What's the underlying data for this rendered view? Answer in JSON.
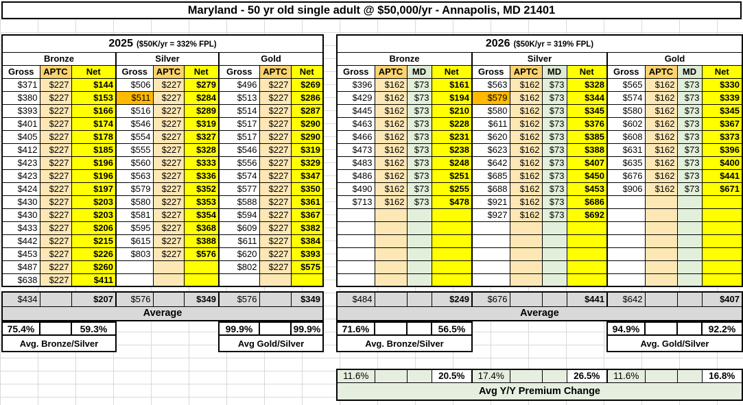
{
  "title": "Maryland - 50 yr old single adult @ $50,000/yr - Annapolis, MD 21401",
  "colors": {
    "net_yellow": "#ffff00",
    "aptc_header_tan": "#fbd36e",
    "aptc_cell_tan": "#fce7b5",
    "md_green": "#e2efda",
    "highlight_orange": "#ffb900",
    "summary_gray": "#d9d9d9",
    "yy_green": "#e6eee0"
  },
  "tables": [
    {
      "key": "y2025",
      "year": "2025",
      "note": "($50K/yr = 332% FPL)",
      "columns": [
        "Gross",
        "APTC",
        "Net"
      ],
      "groups": [
        {
          "name": "Bronze",
          "rows": [
            [
              "$371",
              "$227",
              "$144"
            ],
            [
              "$380",
              "$227",
              "$153"
            ],
            [
              "$393",
              "$227",
              "$166"
            ],
            [
              "$401",
              "$227",
              "$174"
            ],
            [
              "$405",
              "$227",
              "$178"
            ],
            [
              "$412",
              "$227",
              "$185"
            ],
            [
              "$423",
              "$227",
              "$196"
            ],
            [
              "$423",
              "$227",
              "$196"
            ],
            [
              "$424",
              "$227",
              "$197"
            ],
            [
              "$430",
              "$227",
              "$203"
            ],
            [
              "$430",
              "$227",
              "$203"
            ],
            [
              "$433",
              "$227",
              "$206"
            ],
            [
              "$442",
              "$227",
              "$215"
            ],
            [
              "$453",
              "$227",
              "$226"
            ],
            [
              "$487",
              "$227",
              "$260"
            ],
            [
              "$638",
              "$227",
              "$411"
            ]
          ]
        },
        {
          "name": "Silver",
          "rows": [
            [
              "$506",
              "$227",
              "$279"
            ],
            [
              "$511",
              "$227",
              "$284"
            ],
            [
              "$516",
              "$227",
              "$289"
            ],
            [
              "$546",
              "$227",
              "$319"
            ],
            [
              "$554",
              "$227",
              "$327"
            ],
            [
              "$555",
              "$227",
              "$328"
            ],
            [
              "$560",
              "$227",
              "$333"
            ],
            [
              "$563",
              "$227",
              "$336"
            ],
            [
              "$579",
              "$227",
              "$352"
            ],
            [
              "$580",
              "$227",
              "$353"
            ],
            [
              "$581",
              "$227",
              "$354"
            ],
            [
              "$595",
              "$227",
              "$368"
            ],
            [
              "$615",
              "$227",
              "$388"
            ],
            [
              "$803",
              "$227",
              "$576"
            ],
            [
              "",
              "",
              ""
            ],
            [
              "",
              "",
              ""
            ]
          ]
        },
        {
          "name": "Gold",
          "rows": [
            [
              "$496",
              "$227",
              "$269"
            ],
            [
              "$513",
              "$227",
              "$286"
            ],
            [
              "$514",
              "$227",
              "$287"
            ],
            [
              "$517",
              "$227",
              "$290"
            ],
            [
              "$517",
              "$227",
              "$290"
            ],
            [
              "$546",
              "$227",
              "$319"
            ],
            [
              "$556",
              "$227",
              "$329"
            ],
            [
              "$574",
              "$227",
              "$347"
            ],
            [
              "$577",
              "$227",
              "$350"
            ],
            [
              "$588",
              "$227",
              "$361"
            ],
            [
              "$594",
              "$227",
              "$367"
            ],
            [
              "$609",
              "$227",
              "$382"
            ],
            [
              "$611",
              "$227",
              "$384"
            ],
            [
              "$620",
              "$227",
              "$393"
            ],
            [
              "$802",
              "$227",
              "$575"
            ],
            [
              "",
              "",
              ""
            ]
          ]
        }
      ],
      "highlights": [
        [
          1,
          1,
          0
        ]
      ],
      "summary": {
        "avg_cells": [
          [
            "$434",
            "",
            "$207"
          ],
          [
            "$576",
            "",
            "$349"
          ],
          [
            "$576",
            "",
            "$349"
          ]
        ],
        "avg_label": "Average",
        "pct_cells": [
          [
            "75.4%",
            "",
            "59.3%"
          ],
          null,
          [
            "99.9%",
            "",
            "99.9%"
          ]
        ],
        "pct_labels": [
          "Avg. Bronze/Silver",
          null,
          "Avg Gold/Silver"
        ]
      }
    },
    {
      "key": "y2026",
      "year": "2026",
      "note": "($50K/yr = 319% FPL)",
      "columns": [
        "Gross",
        "APTC",
        "MD",
        "Net"
      ],
      "groups": [
        {
          "name": "Bronze",
          "rows": [
            [
              "$396",
              "$162",
              "$73",
              "$161"
            ],
            [
              "$429",
              "$162",
              "$73",
              "$194"
            ],
            [
              "$445",
              "$162",
              "$73",
              "$210"
            ],
            [
              "$463",
              "$162",
              "$73",
              "$228"
            ],
            [
              "$466",
              "$162",
              "$73",
              "$231"
            ],
            [
              "$473",
              "$162",
              "$73",
              "$238"
            ],
            [
              "$483",
              "$162",
              "$73",
              "$248"
            ],
            [
              "$486",
              "$162",
              "$73",
              "$251"
            ],
            [
              "$490",
              "$162",
              "$73",
              "$255"
            ],
            [
              "$713",
              "$162",
              "$73",
              "$478"
            ],
            [
              "",
              "",
              "",
              ""
            ],
            [
              "",
              "",
              "",
              ""
            ],
            [
              "",
              "",
              "",
              ""
            ],
            [
              "",
              "",
              "",
              ""
            ],
            [
              "",
              "",
              "",
              ""
            ],
            [
              "",
              "",
              "",
              ""
            ]
          ]
        },
        {
          "name": "Silver",
          "rows": [
            [
              "$563",
              "$162",
              "$73",
              "$328"
            ],
            [
              "$579",
              "$162",
              "$73",
              "$344"
            ],
            [
              "$580",
              "$162",
              "$73",
              "$345"
            ],
            [
              "$611",
              "$162",
              "$73",
              "$376"
            ],
            [
              "$620",
              "$162",
              "$73",
              "$385"
            ],
            [
              "$623",
              "$162",
              "$73",
              "$388"
            ],
            [
              "$642",
              "$162",
              "$73",
              "$407"
            ],
            [
              "$685",
              "$162",
              "$73",
              "$450"
            ],
            [
              "$688",
              "$162",
              "$73",
              "$453"
            ],
            [
              "$921",
              "$162",
              "$73",
              "$686"
            ],
            [
              "$927",
              "$162",
              "$73",
              "$692"
            ],
            [
              "",
              "",
              "",
              ""
            ],
            [
              "",
              "",
              "",
              ""
            ],
            [
              "",
              "",
              "",
              ""
            ],
            [
              "",
              "",
              "",
              ""
            ],
            [
              "",
              "",
              "",
              ""
            ]
          ]
        },
        {
          "name": "Gold",
          "rows": [
            [
              "$565",
              "$162",
              "$73",
              "$330"
            ],
            [
              "$574",
              "$162",
              "$73",
              "$339"
            ],
            [
              "$580",
              "$162",
              "$73",
              "$345"
            ],
            [
              "$602",
              "$162",
              "$73",
              "$367"
            ],
            [
              "$608",
              "$162",
              "$73",
              "$373"
            ],
            [
              "$631",
              "$162",
              "$73",
              "$396"
            ],
            [
              "$635",
              "$162",
              "$73",
              "$400"
            ],
            [
              "$676",
              "$162",
              "$73",
              "$441"
            ],
            [
              "$906",
              "$162",
              "$73",
              "$671"
            ],
            [
              "",
              "",
              "",
              ""
            ],
            [
              "",
              "",
              "",
              ""
            ],
            [
              "",
              "",
              "",
              ""
            ],
            [
              "",
              "",
              "",
              ""
            ],
            [
              "",
              "",
              "",
              ""
            ],
            [
              "",
              "",
              "",
              ""
            ],
            [
              "",
              "",
              "",
              ""
            ]
          ]
        }
      ],
      "highlights": [
        [
          1,
          1,
          0
        ]
      ],
      "summary": {
        "avg_cells": [
          [
            "$484",
            "",
            "",
            "$249"
          ],
          [
            "$676",
            "",
            "",
            "$441"
          ],
          [
            "$642",
            "",
            "",
            "$407"
          ]
        ],
        "avg_label": "Average",
        "pct_cells": [
          [
            "71.6%",
            "",
            "",
            "56.5%"
          ],
          null,
          [
            "94.9%",
            "",
            "",
            "92.2%"
          ]
        ],
        "pct_labels": [
          "Avg. Bronze/Silver",
          null,
          "Avg. Gold/Silver"
        ]
      },
      "yy": {
        "cells": [
          [
            "11.6%",
            "",
            "",
            "20.5%"
          ],
          [
            "17.4%",
            "",
            "",
            "26.5%"
          ],
          [
            "11.6%",
            "",
            "",
            "16.8%"
          ]
        ],
        "label": "Avg Y/Y Premium Change"
      }
    }
  ]
}
